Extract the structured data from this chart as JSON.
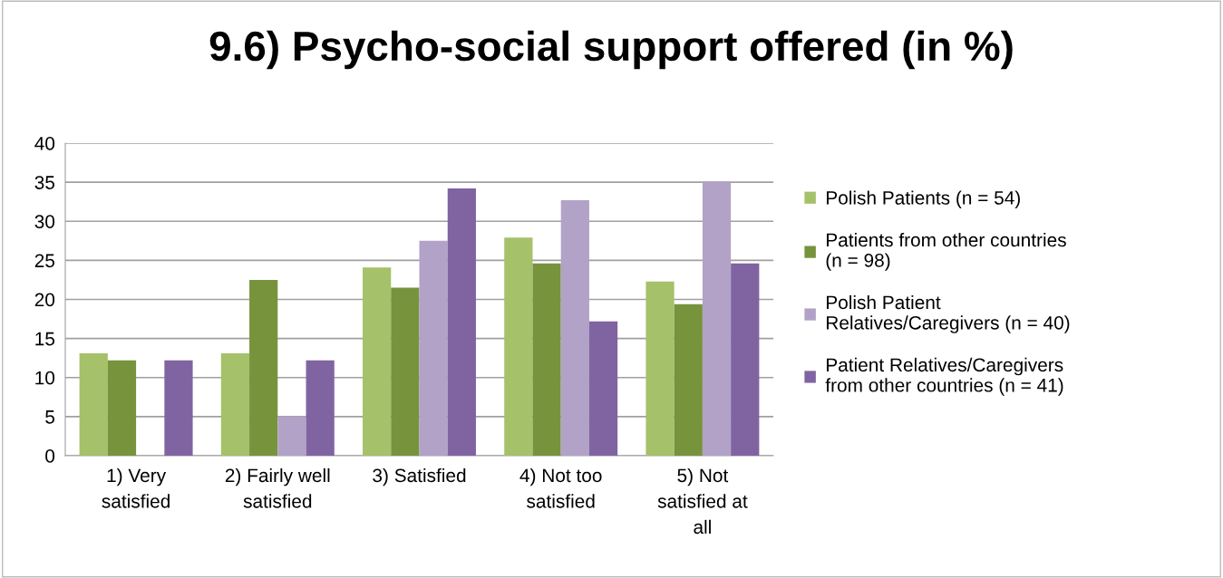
{
  "chart_data": {
    "type": "bar",
    "title": "9.6) Psycho-social support offered (in %)",
    "categories": [
      "1) Very\nsatisfied",
      "2) Fairly well\nsatisfied",
      "3) Satisfied",
      "4) Not too\nsatisfied",
      "5) Not\nsatisfied at\nall"
    ],
    "series": [
      {
        "name": "Polish Patients (n = 54)",
        "color": "#a5c16a",
        "values": [
          13.1,
          13.1,
          24.1,
          27.9,
          22.3
        ]
      },
      {
        "name": "Patients from other countries\n(n = 98)",
        "color": "#77933c",
        "values": [
          12.2,
          22.5,
          21.5,
          24.6,
          19.4
        ]
      },
      {
        "name": "Polish Patient\nRelatives/Caregivers (n = 40)",
        "color": "#b2a2c7",
        "values": [
          0,
          5.0,
          27.5,
          32.7,
          35.1
        ]
      },
      {
        "name": "Patient Relatives/Caregivers\nfrom other countries (n = 41)",
        "color": "#8064a2",
        "values": [
          12.2,
          12.2,
          34.2,
          17.2,
          24.6
        ]
      }
    ],
    "ylim": [
      0,
      40
    ],
    "yticks": [
      0,
      5,
      10,
      15,
      20,
      25,
      30,
      35,
      40
    ],
    "grid": "y",
    "legend": "right"
  }
}
